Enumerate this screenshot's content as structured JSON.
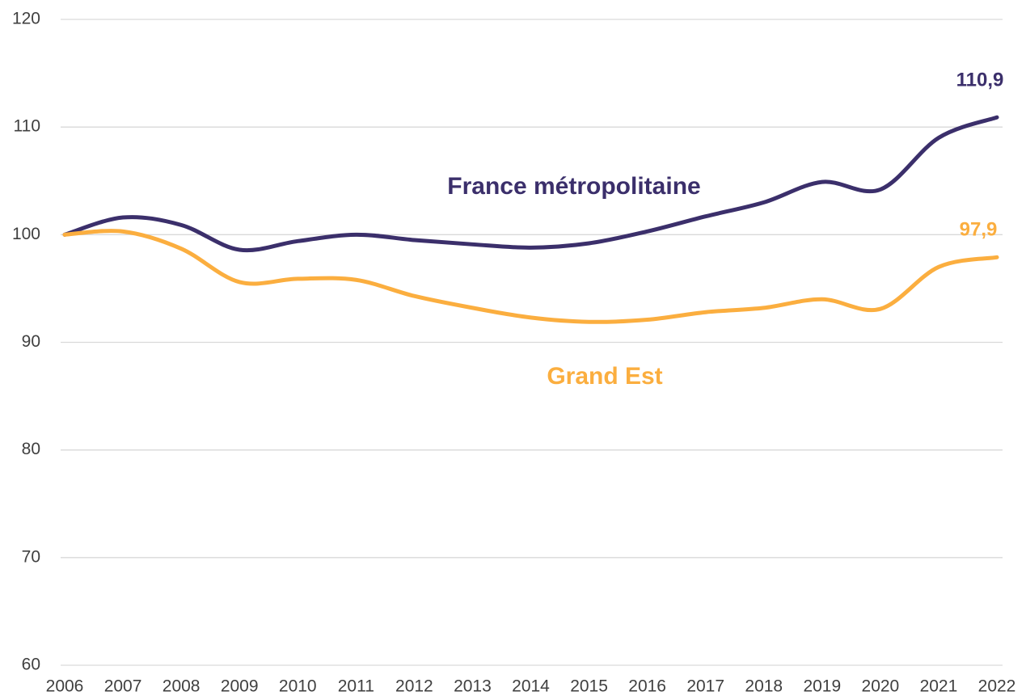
{
  "chart_data": {
    "type": "line",
    "x": [
      2006,
      2007,
      2008,
      2009,
      2010,
      2011,
      2012,
      2013,
      2014,
      2015,
      2016,
      2017,
      2018,
      2019,
      2020,
      2021,
      2022
    ],
    "xlim": [
      2006,
      2022
    ],
    "ylim": [
      60,
      120
    ],
    "yticks": [
      60,
      70,
      80,
      90,
      100,
      110,
      120
    ],
    "grid": true,
    "series": [
      {
        "name": "France métropolitaine",
        "color": "#3b2f6b",
        "values": [
          100,
          101.6,
          100.9,
          98.6,
          99.4,
          100.0,
          99.5,
          99.1,
          98.8,
          99.2,
          100.3,
          101.7,
          103.0,
          104.9,
          104.2,
          109.0,
          110.9
        ],
        "value_labels": [
          null,
          null,
          null,
          null,
          null,
          null,
          null,
          null,
          null,
          null,
          null,
          null,
          null,
          null,
          null,
          null,
          "110,9"
        ]
      },
      {
        "name": "Grand Est",
        "color": "#fbae3f",
        "values": [
          100,
          100.3,
          98.7,
          95.6,
          95.9,
          95.8,
          94.3,
          93.2,
          92.3,
          91.9,
          92.1,
          92.8,
          93.2,
          94.0,
          93.1,
          97.0,
          97.9
        ],
        "value_labels": [
          null,
          null,
          null,
          null,
          null,
          null,
          null,
          null,
          null,
          null,
          null,
          null,
          null,
          null,
          null,
          null,
          "97,9"
        ]
      }
    ]
  }
}
